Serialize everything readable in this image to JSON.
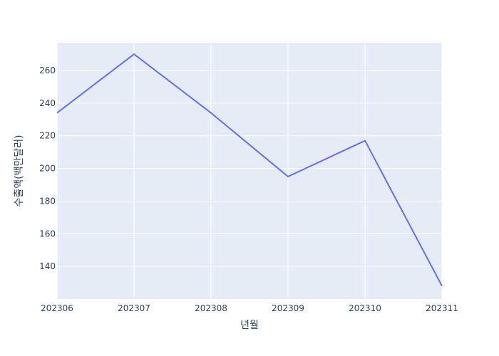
{
  "chart_data": {
    "type": "line",
    "title": "",
    "xlabel": "년월",
    "ylabel": "수출액(백만달러)",
    "categories": [
      "202306",
      "202307",
      "202308",
      "202309",
      "202310",
      "202311"
    ],
    "series": [
      {
        "values": [
          234,
          270,
          234,
          195,
          217,
          128
        ]
      }
    ],
    "ylim": [
      120,
      277
    ],
    "yticks": [
      140,
      160,
      180,
      200,
      220,
      240,
      260
    ],
    "grid": true,
    "colors": {
      "plot_background": "#e5ecf6",
      "grid": "#ffffff",
      "line": "#636efa",
      "text": "#2a3f5f"
    }
  }
}
